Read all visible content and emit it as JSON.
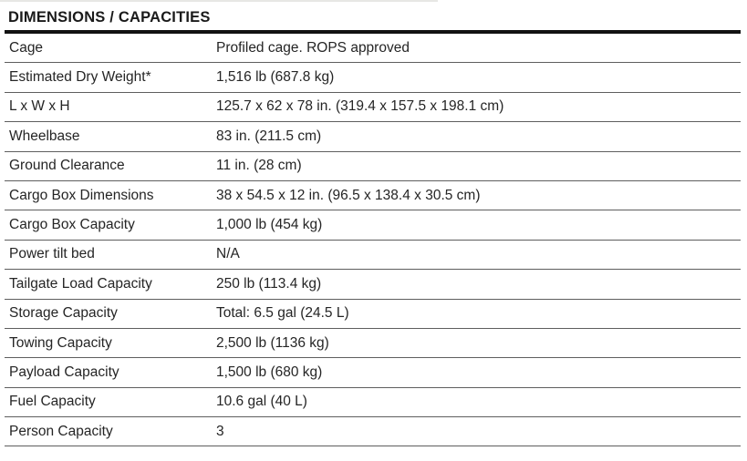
{
  "title": "DIMENSIONS / CAPACITIES",
  "colors": {
    "text": "#252525",
    "title_rule": "#121212",
    "row_separator": "#5e5e5e",
    "background": "#ffffff"
  },
  "table": {
    "columns": [
      "label",
      "value"
    ],
    "rows": [
      {
        "label": "Cage",
        "value": "Profiled cage. ROPS approved"
      },
      {
        "label": "Estimated Dry Weight*",
        "value": "1,516 lb (687.8 kg)"
      },
      {
        "label": "L x W x H",
        "value": "125.7 x 62 x 78 in. (319.4 x 157.5 x 198.1 cm)"
      },
      {
        "label": "Wheelbase",
        "value": "83 in. (211.5 cm)"
      },
      {
        "label": "Ground Clearance",
        "value": "11 in. (28 cm)"
      },
      {
        "label": "Cargo Box Dimensions",
        "value": "38 x 54.5 x 12 in. (96.5 x 138.4 x 30.5 cm)"
      },
      {
        "label": "Cargo Box Capacity",
        "value": "1,000 lb (454 kg)"
      },
      {
        "label": "Power tilt bed",
        "value": "N/A"
      },
      {
        "label": "Tailgate Load Capacity",
        "value": "250 lb (113.4 kg)"
      },
      {
        "label": "Storage Capacity",
        "value": "Total: 6.5 gal (24.5 L)"
      },
      {
        "label": "Towing Capacity",
        "value": "2,500 lb (1136 kg)"
      },
      {
        "label": "Payload Capacity",
        "value": "1,500 lb (680 kg)"
      },
      {
        "label": "Fuel Capacity",
        "value": "10.6 gal (40 L)"
      },
      {
        "label": "Person Capacity",
        "value": "3"
      }
    ]
  }
}
